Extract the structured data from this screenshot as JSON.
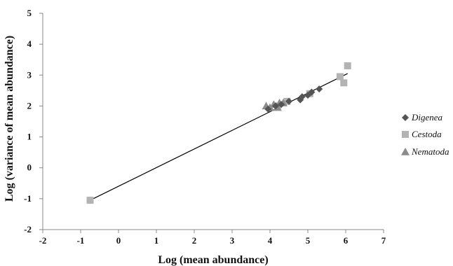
{
  "chart_data": {
    "type": "scatter",
    "title": "",
    "xlabel": "Log (mean abundance)",
    "ylabel": "Log (variance of mean abundance)",
    "xlim": [
      -2,
      7
    ],
    "ylim": [
      -2,
      5
    ],
    "xticks": [
      -2,
      -1,
      0,
      1,
      2,
      3,
      4,
      5,
      6,
      7
    ],
    "yticks": [
      -2,
      -1,
      0,
      1,
      2,
      3,
      4,
      5
    ],
    "grid": false,
    "legend_position": "right",
    "series": [
      {
        "name": "Digenea",
        "marker": "diamond",
        "color": "#555555",
        "points": [
          [
            3.95,
            1.9
          ],
          [
            4.15,
            2.0
          ],
          [
            4.3,
            2.05
          ],
          [
            4.5,
            2.15
          ],
          [
            4.8,
            2.2
          ],
          [
            4.85,
            2.3
          ],
          [
            5.0,
            2.35
          ],
          [
            5.1,
            2.45
          ],
          [
            5.3,
            2.55
          ]
        ]
      },
      {
        "name": "Cestoda",
        "marker": "square",
        "color": "#b3b3b3",
        "points": [
          [
            -0.75,
            -1.05
          ],
          [
            4.2,
            2.0
          ],
          [
            4.45,
            2.15
          ],
          [
            5.05,
            2.4
          ],
          [
            5.85,
            2.95
          ],
          [
            5.95,
            2.75
          ],
          [
            6.05,
            3.3
          ]
        ]
      },
      {
        "name": "Nematoda",
        "marker": "triangle",
        "color": "#8c8c8c",
        "points": [
          [
            3.9,
            2.0
          ],
          [
            4.0,
            1.95
          ],
          [
            4.1,
            2.05
          ],
          [
            4.25,
            2.1
          ],
          [
            4.35,
            2.1
          ],
          [
            4.2,
            1.95
          ]
        ]
      }
    ],
    "regression_line": {
      "x1": -0.75,
      "y1": -1.05,
      "x2": 6.05,
      "y2": 3.05,
      "color": "#000000"
    }
  }
}
